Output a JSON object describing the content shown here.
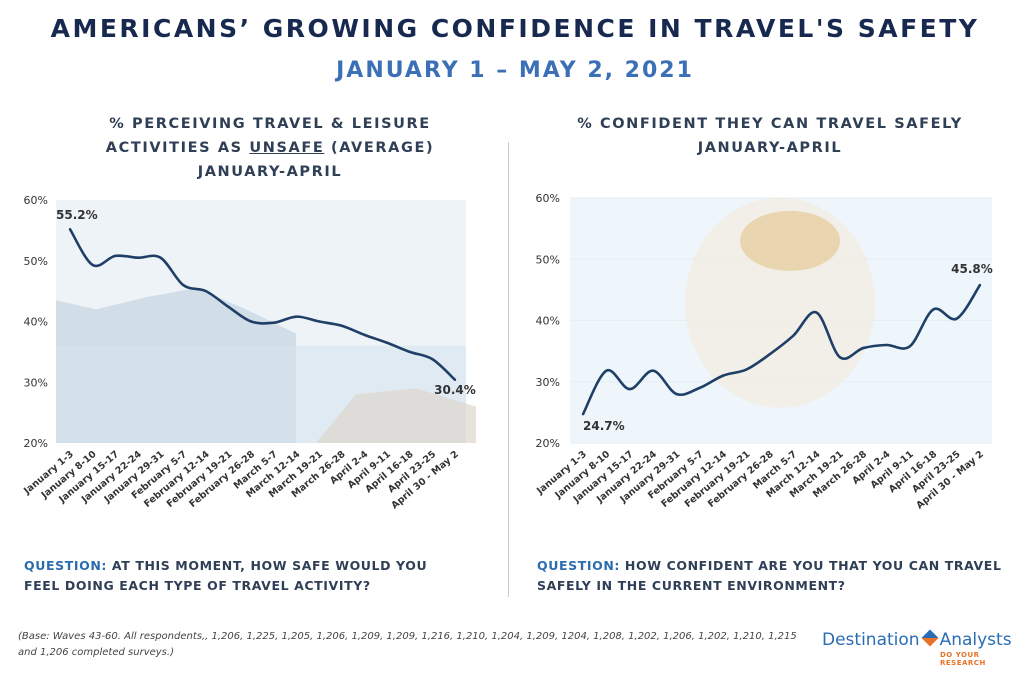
{
  "header": {
    "title": "AMERICANS’ GROWING CONFIDENCE IN TRAVEL'S SAFETY",
    "subtitle": "JANUARY 1 – MAY 2, 2021"
  },
  "left_panel": {
    "title_line1": "% PERCEIVING TRAVEL & LEISURE",
    "title_line2_pre": "ACTIVITIES AS ",
    "title_line2_underlined": "UNSAFE",
    "title_line2_post": " (AVERAGE)",
    "title_line3": "JANUARY-APRIL",
    "question_label": "QUESTION:",
    "question_text": " AT THIS MOMENT, HOW SAFE WOULD YOU FEEL DOING EACH TYPE OF TRAVEL ACTIVITY?"
  },
  "right_panel": {
    "title_line1": "% CONFIDENT THEY CAN TRAVEL SAFELY",
    "title_line2": "JANUARY-APRIL",
    "question_label": "QUESTION:",
    "question_text": " HOW CONFIDENT ARE YOU THAT YOU CAN TRAVEL SAFELY IN THE CURRENT ENVIRONMENT?"
  },
  "footnote": "(Base: Waves 43-60.  All respondents,, 1,206, 1,225, 1,205, 1,206, 1,209, 1,209, 1,216, 1,210, 1,204, 1,209, 1204, 1,208, 1,202, 1,206, 1,202, 1,210, 1,215 and 1,206 completed surveys.)",
  "logo": {
    "name_part1": "Destination",
    "name_part2": "Analysts",
    "tagline": "DO YOUR RESEARCH"
  },
  "colors": {
    "line": "#1f3f66",
    "title": "#17294f",
    "accent": "#3b6fb6"
  },
  "chart_data": [
    {
      "type": "line",
      "title": "% PERCEIVING TRAVEL & LEISURE ACTIVITIES AS UNSAFE (AVERAGE) JANUARY-APRIL",
      "categories": [
        "January 1-3",
        "January 8-10",
        "January 15-17",
        "January 22-24",
        "January 29-31",
        "February 5-7",
        "February 12-14",
        "February 19-21",
        "February 26-28",
        "March 5-7",
        "March 12-14",
        "March 19-21",
        "March 26-28",
        "April 2-4",
        "April 9-11",
        "April 16-18",
        "April 23-25",
        "April 30 - May 2"
      ],
      "values": [
        55.2,
        49.3,
        50.8,
        50.5,
        50.5,
        46.0,
        45.0,
        42.4,
        40.0,
        39.8,
        40.8,
        40.0,
        39.3,
        37.8,
        36.5,
        35.0,
        33.8,
        30.4
      ],
      "ylim": [
        20,
        60
      ],
      "yticks": [
        "20%",
        "30%",
        "40%",
        "50%",
        "60%"
      ],
      "data_labels": [
        {
          "index": 0,
          "text": "55.2%"
        },
        {
          "index": 17,
          "text": "30.4%"
        }
      ]
    },
    {
      "type": "line",
      "title": "% CONFIDENT THEY CAN TRAVEL SAFELY JANUARY-APRIL",
      "categories": [
        "January 1-3",
        "January 8-10",
        "January 15-17",
        "January 22-24",
        "January 29-31",
        "February 5-7",
        "February 12-14",
        "February 19-21",
        "February 26-28",
        "March 5-7",
        "March 12-14",
        "March 19-21",
        "March 26-28",
        "April 2-4",
        "April 9-11",
        "April 16-18",
        "April 23-25",
        "April 30 - May 2"
      ],
      "values": [
        24.7,
        31.8,
        28.8,
        31.8,
        28.0,
        29.0,
        31.0,
        32.0,
        34.5,
        37.5,
        41.3,
        34.0,
        35.5,
        36.0,
        35.8,
        41.8,
        40.3,
        45.8
      ],
      "ylim": [
        20,
        60
      ],
      "yticks": [
        "20%",
        "30%",
        "40%",
        "50%",
        "60%"
      ],
      "data_labels": [
        {
          "index": 0,
          "text": "24.7%"
        },
        {
          "index": 17,
          "text": "45.8%"
        }
      ]
    }
  ]
}
